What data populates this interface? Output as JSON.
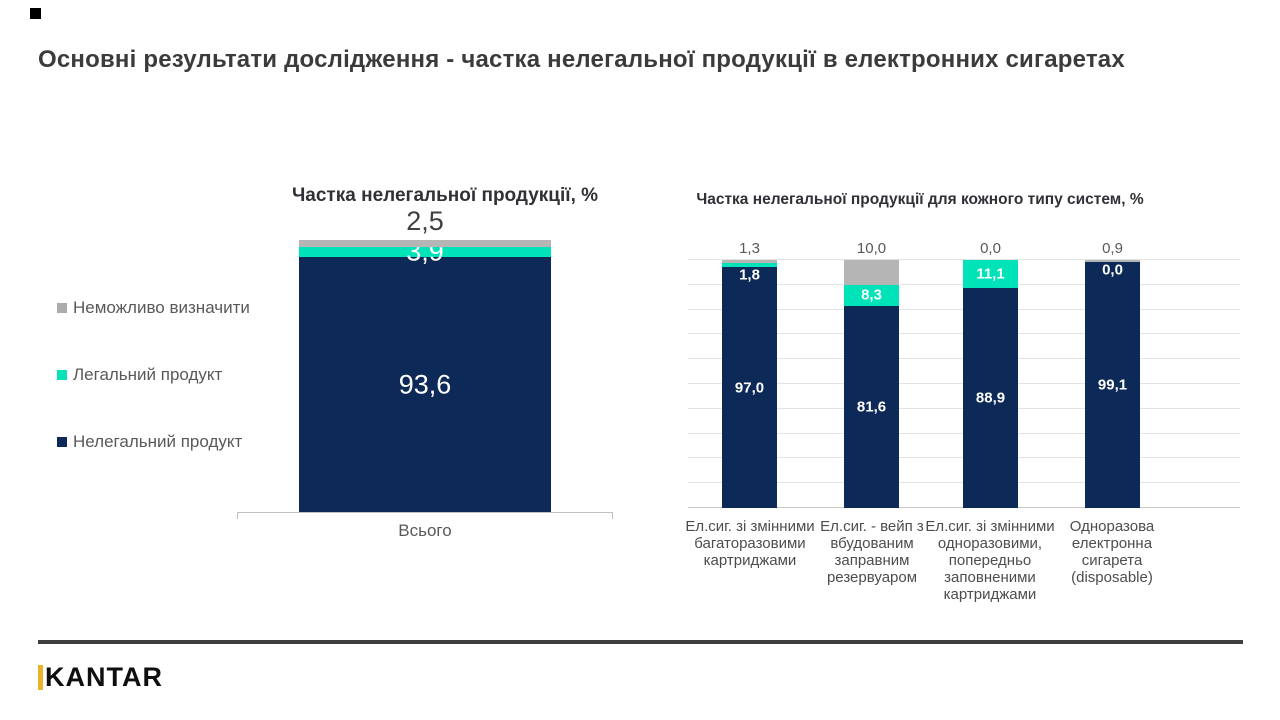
{
  "page": {
    "title": "Основні результати дослідження - частка нелегальної продукції в електронних сигаретах"
  },
  "colors": {
    "illegal": "#0c2957",
    "legal": "#00e2b8",
    "undetermined": "#b5b5b5",
    "legend_grey_swatch": "#ababab",
    "gridline": "#e3e3e3",
    "axis": "#bfbfbf",
    "footer_rule": "#3e3e3e",
    "logo_yellow": "#e9b32b"
  },
  "legend": {
    "position": "left",
    "items": [
      {
        "label": "Неможливо визначити",
        "color": "#ababab"
      },
      {
        "label": "Легальний продукт",
        "color": "#00e2b8"
      },
      {
        "label": "Нелегальний продукт",
        "color": "#0c2957"
      }
    ]
  },
  "chart_data": [
    {
      "id": "total-share",
      "type": "bar",
      "stacked": true,
      "title": "Частка нелегальної продукції, %",
      "categories": [
        "Всього"
      ],
      "series": [
        {
          "key": "illegal",
          "name": "Нелегальний продукт",
          "color": "#0c2957",
          "values": [
            93.6
          ],
          "labels": [
            "93,6"
          ],
          "label_placement": "inside-white"
        },
        {
          "key": "legal",
          "name": "Легальний продукт",
          "color": "#00e2b8",
          "values": [
            3.9
          ],
          "labels": [
            "3,9"
          ],
          "label_placement": "inside-white"
        },
        {
          "key": "undetermined",
          "name": "Неможливо визначити",
          "color": "#b5b5b5",
          "values": [
            2.5
          ],
          "labels": [
            "2,5"
          ],
          "label_placement": "above-dark"
        }
      ],
      "ylim": [
        0,
        100
      ],
      "grid": false,
      "legend_position": "left"
    },
    {
      "id": "share-by-system-type",
      "type": "bar",
      "stacked": true,
      "title": "Частка нелегальної продукції для кожного типу систем, %",
      "categories": [
        "Ел.сиг. зі змінними\nбагаторазовими\nкартриджами",
        "Ел.сиг. - вейп з\nвбудованим\nзаправним\nрезервуаром",
        "Ел.сиг. зі змінними\nодноразовими,\nпопередньо\nзаповненими\nкартриджами",
        "Одноразова\nелектронна\nсигарета\n(disposable)"
      ],
      "series": [
        {
          "key": "illegal",
          "name": "Нелегальний продукт",
          "color": "#0c2957",
          "values": [
            97.0,
            81.6,
            88.9,
            99.1
          ],
          "labels": [
            "97,0",
            "81,6",
            "88,9",
            "99,1"
          ],
          "label_placement": "inside-white"
        },
        {
          "key": "legal",
          "name": "Легальний продукт",
          "color": "#00e2b8",
          "values": [
            1.8,
            8.3,
            11.1,
            0.0
          ],
          "labels": [
            "1,8",
            "8,3",
            "11,1",
            "0,0"
          ],
          "label_placement": "inside-white"
        },
        {
          "key": "undetermined",
          "name": "Неможливо визначити",
          "color": "#b5b5b5",
          "values": [
            1.3,
            10.0,
            0.0,
            0.9
          ],
          "labels": [
            "1,3",
            "10,0",
            "0,0",
            "0,9"
          ],
          "label_placement": "above-grey"
        }
      ],
      "ylim": [
        0,
        100
      ],
      "grid": true,
      "gridline_step": 10
    }
  ],
  "footer": {
    "logo_text": "KANTAR"
  }
}
